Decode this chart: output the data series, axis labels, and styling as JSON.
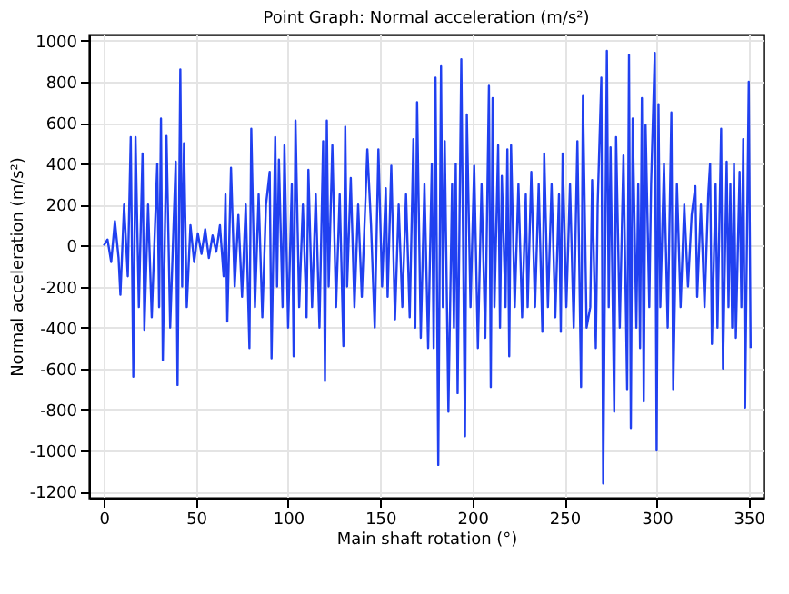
{
  "chart_data": {
    "type": "line",
    "title": "Point Graph: Normal acceleration (m/s²)",
    "xlabel": "Main shaft rotation (°)",
    "ylabel": "Normal acceleration (m/s²)",
    "xlim": [
      -8,
      358
    ],
    "ylim": [
      -1230,
      1030
    ],
    "xticks": [
      0,
      50,
      100,
      150,
      200,
      250,
      300,
      350
    ],
    "yticks": [
      -1200,
      -1000,
      -800,
      -600,
      -400,
      -200,
      0,
      200,
      400,
      600,
      800,
      1000
    ],
    "grid": true,
    "legend": false,
    "line_style": "solid",
    "marker": "none",
    "series": [
      {
        "color": "#2040f0",
        "x": [
          0,
          2,
          4,
          6,
          8,
          9,
          11,
          13,
          14.6,
          16,
          17.2,
          19,
          21,
          22,
          24,
          26,
          29,
          30,
          31,
          32,
          34,
          36,
          39,
          40,
          41.5,
          42.5,
          43.5,
          45,
          47,
          49,
          51,
          53,
          55,
          57,
          59,
          61,
          63,
          65,
          66,
          67,
          69,
          71,
          73,
          75,
          77,
          79,
          80,
          82,
          84,
          86,
          88,
          90,
          91,
          93,
          94,
          95,
          97,
          98,
          100,
          102,
          103,
          104,
          106,
          108,
          110,
          111,
          113,
          115,
          117,
          119,
          120,
          121,
          122,
          124,
          126,
          128,
          130,
          131,
          132,
          134,
          136,
          138,
          140,
          143,
          145,
          147,
          149,
          151,
          153,
          154,
          156,
          158,
          160,
          162,
          164,
          166,
          168,
          169,
          170,
          172,
          174,
          176,
          178,
          179,
          180,
          181.5,
          183,
          184,
          185,
          187,
          189,
          190,
          191,
          192,
          194,
          196,
          197,
          199,
          201,
          203,
          205,
          207,
          209,
          210,
          211,
          212,
          214,
          215,
          216,
          218,
          219,
          220,
          221,
          223,
          225,
          227,
          229,
          230,
          232,
          234,
          236,
          238,
          239,
          241,
          243,
          245,
          247,
          248,
          249,
          251,
          253,
          255,
          257,
          259,
          260,
          262,
          264,
          265,
          267,
          268,
          270,
          271,
          273,
          274,
          275,
          277,
          278,
          280,
          282,
          284,
          285,
          286,
          287,
          289,
          290,
          291,
          292,
          293,
          294,
          296,
          297,
          299,
          300,
          301,
          302,
          304,
          306,
          308,
          309,
          311,
          313,
          315,
          317,
          319,
          321,
          322,
          324,
          326,
          328,
          329,
          330,
          332,
          333,
          335,
          336,
          338,
          339,
          340,
          341,
          342,
          343,
          345,
          346,
          347,
          348,
          350,
          351
        ],
        "values": [
          0,
          30,
          -80,
          120,
          -60,
          -240,
          200,
          -150,
          530,
          -640,
          530,
          -300,
          450,
          -410,
          200,
          -350,
          400,
          -300,
          620,
          -560,
          535,
          -400,
          410,
          -680,
          860,
          -200,
          500,
          -300,
          100,
          -80,
          60,
          -40,
          80,
          -60,
          50,
          -30,
          100,
          -150,
          250,
          -370,
          380,
          -200,
          150,
          -250,
          200,
          -500,
          570,
          -300,
          250,
          -350,
          200,
          360,
          -550,
          530,
          -200,
          420,
          -300,
          490,
          -400,
          300,
          -540,
          610,
          -300,
          200,
          -350,
          370,
          -300,
          250,
          -400,
          510,
          -660,
          610,
          -200,
          490,
          -300,
          250,
          -490,
          580,
          -200,
          330,
          -300,
          200,
          -250,
          470,
          100,
          -400,
          470,
          -200,
          280,
          -250,
          390,
          -360,
          200,
          -300,
          250,
          -350,
          520,
          -400,
          700,
          -450,
          300,
          -500,
          400,
          -500,
          820,
          -1070,
          875,
          -300,
          510,
          -810,
          300,
          -400,
          400,
          -720,
          910,
          -930,
          640,
          -300,
          390,
          -500,
          300,
          -450,
          780,
          -690,
          720,
          -300,
          490,
          -400,
          340,
          -300,
          470,
          -540,
          490,
          -300,
          300,
          -350,
          250,
          -300,
          360,
          -300,
          300,
          -420,
          450,
          -300,
          300,
          -350,
          250,
          -420,
          450,
          -300,
          300,
          -400,
          510,
          -690,
          730,
          -400,
          -300,
          320,
          -500,
          200,
          820,
          -1160,
          950,
          -300,
          480,
          -810,
          530,
          -400,
          440,
          -700,
          930,
          -890,
          620,
          -400,
          300,
          -500,
          720,
          -760,
          590,
          -300,
          300,
          940,
          -1000,
          690,
          -300,
          400,
          -400,
          650,
          -700,
          300,
          -300,
          200,
          -200,
          150,
          290,
          -250,
          200,
          -300,
          250,
          400,
          -480,
          300,
          -400,
          570,
          -600,
          410,
          -300,
          300,
          -400,
          400,
          -450,
          360,
          -300,
          520,
          -790,
          800,
          -500
        ]
      }
    ]
  }
}
